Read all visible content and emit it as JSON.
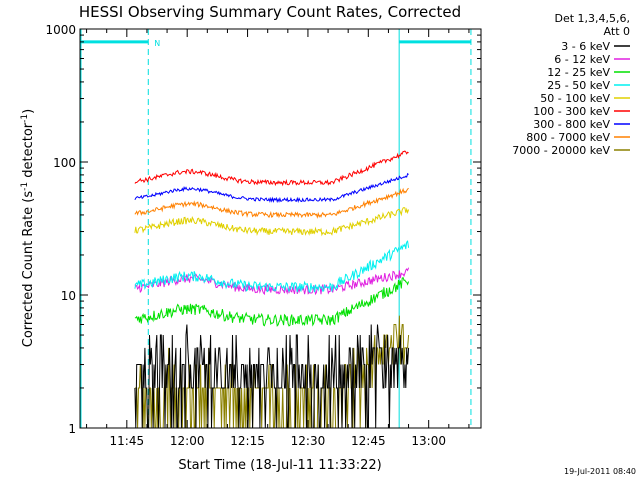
{
  "chart_data": {
    "type": "line",
    "title": "HESSI Observing Summary Count Rates, Corrected",
    "ylabel_main": "Corrected Count Rate (s",
    "ylabel_sup1": "-1",
    "ylabel_mid": " detector",
    "ylabel_sup2": "-1",
    "ylabel_end": ")",
    "xlabel": "Start Time (18-Jul-11 11:33:22)",
    "timestamp": "19-Jul-2011 08:40",
    "y_scale": "log",
    "ylim": [
      1,
      1000
    ],
    "xlim": [
      "11:33:22",
      "13:13:00"
    ],
    "x_ticks": [
      "11:45",
      "12:00",
      "12:15",
      "12:30",
      "12:45",
      "13:00"
    ],
    "y_ticks": [
      "1",
      "10",
      "100",
      "1000"
    ],
    "legend_header": [
      "Det 1,3,4,5,6,",
      "Att 0"
    ],
    "legend_placement": "right",
    "flag_label": "N",
    "flag_intervals": [
      [
        "11:33:22",
        "11:50:20"
      ],
      [
        "12:52:40",
        "13:10:30"
      ]
    ],
    "flag_level": 800,
    "data_start": "11:47:00",
    "data_end": "12:55:00",
    "series": [
      {
        "name": "3 - 6 keV",
        "color": "#000000",
        "level_start": 2.5,
        "level_end": 3.6,
        "noise": 0.35
      },
      {
        "name": "6 - 12 keV",
        "color": "#e020e0",
        "level_start": 11,
        "level_end": 15,
        "noise": 0.08
      },
      {
        "name": "12 - 25 keV",
        "color": "#00e000",
        "level_start": 6.5,
        "level_end": 13,
        "noise": 0.1
      },
      {
        "name": "25 - 50 keV",
        "color": "#00f0f0",
        "level_start": 11.5,
        "level_end": 24,
        "noise": 0.09
      },
      {
        "name": "50 - 100 keV",
        "color": "#e0d000",
        "level_start": 30,
        "level_end": 44,
        "noise": 0.06
      },
      {
        "name": "100 - 300 keV",
        "color": "#ff0000",
        "level_start": 70,
        "level_end": 120,
        "noise": 0.04
      },
      {
        "name": "300 - 800 keV",
        "color": "#0000ff",
        "level_start": 52,
        "level_end": 80,
        "noise": 0.03
      },
      {
        "name": "800 - 7000 keV",
        "color": "#ff8000",
        "level_start": 40,
        "level_end": 62,
        "noise": 0.04
      },
      {
        "name": "7000 - 20000 keV",
        "color": "#8b8000",
        "level_start": 1.6,
        "level_end": 5,
        "noise": 0.4
      }
    ]
  }
}
